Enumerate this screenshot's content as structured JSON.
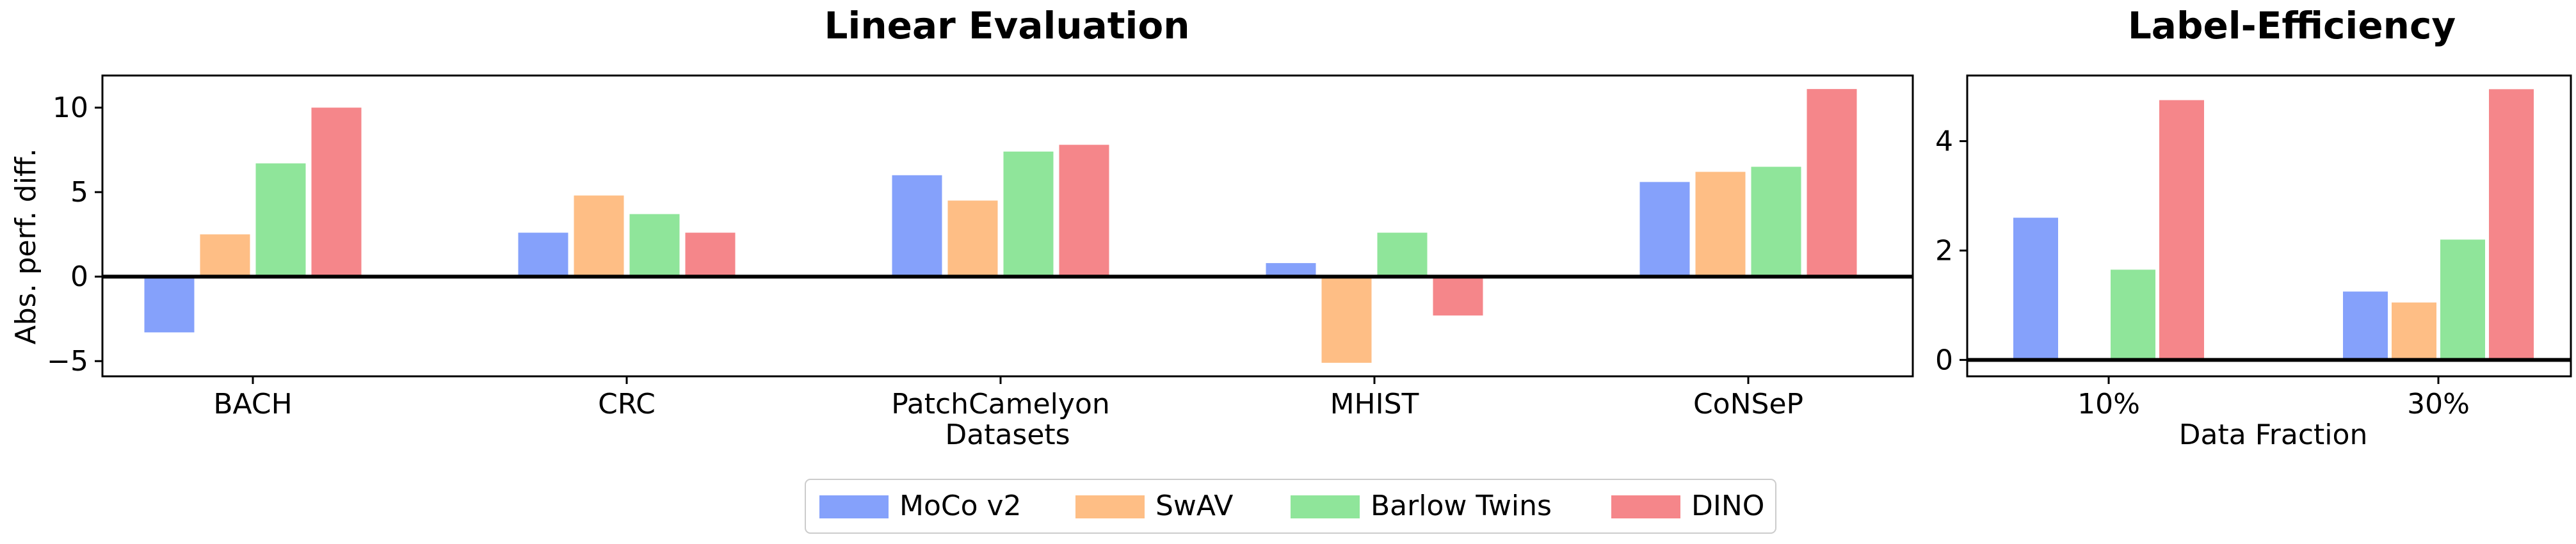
{
  "chart_data": [
    {
      "type": "bar",
      "title": "Linear Evaluation",
      "xlabel": "Datasets",
      "ylabel": "Abs. perf. diff.",
      "categories": [
        "BACH",
        "CRC",
        "PatchCamelyon",
        "MHIST",
        "CoNSeP"
      ],
      "ylim": [
        -5.9,
        11.9
      ],
      "yticks": [
        -5,
        0,
        5,
        10
      ],
      "yticklabels": [
        "−5",
        "0",
        "5",
        "10"
      ],
      "baseline": 0,
      "series": [
        {
          "name": "MoCo v2",
          "values": [
            -3.3,
            2.6,
            6.0,
            0.8,
            5.6
          ]
        },
        {
          "name": "SwAV",
          "values": [
            2.5,
            4.8,
            4.5,
            -5.1,
            6.2
          ]
        },
        {
          "name": "Barlow Twins",
          "values": [
            6.7,
            3.7,
            7.4,
            2.6,
            6.5
          ]
        },
        {
          "name": "DINO",
          "values": [
            10.0,
            2.6,
            7.8,
            -2.3,
            11.1
          ]
        }
      ]
    },
    {
      "type": "bar",
      "title": "Label-Efficiency",
      "xlabel": "Data Fraction",
      "ylabel": "",
      "categories": [
        "10%",
        "30%"
      ],
      "ylim": [
        -0.3,
        5.2
      ],
      "yticks": [
        0,
        2,
        4
      ],
      "yticklabels": [
        "0",
        "2",
        "4"
      ],
      "baseline": 0,
      "series": [
        {
          "name": "MoCo v2",
          "values": [
            2.6,
            1.25
          ]
        },
        {
          "name": "SwAV",
          "values": [
            null,
            1.05
          ]
        },
        {
          "name": "Barlow Twins",
          "values": [
            1.65,
            2.2
          ]
        },
        {
          "name": "DINO",
          "values": [
            4.75,
            4.95
          ]
        }
      ]
    }
  ],
  "legend": {
    "placement": "bottom-center",
    "items": [
      "MoCo v2",
      "SwAV",
      "Barlow Twins",
      "DINO"
    ]
  },
  "colors": {
    "MoCo v2": "#85a1fb",
    "SwAV": "#febe85",
    "Barlow Twins": "#8fe59a",
    "DINO": "#f5868a"
  }
}
